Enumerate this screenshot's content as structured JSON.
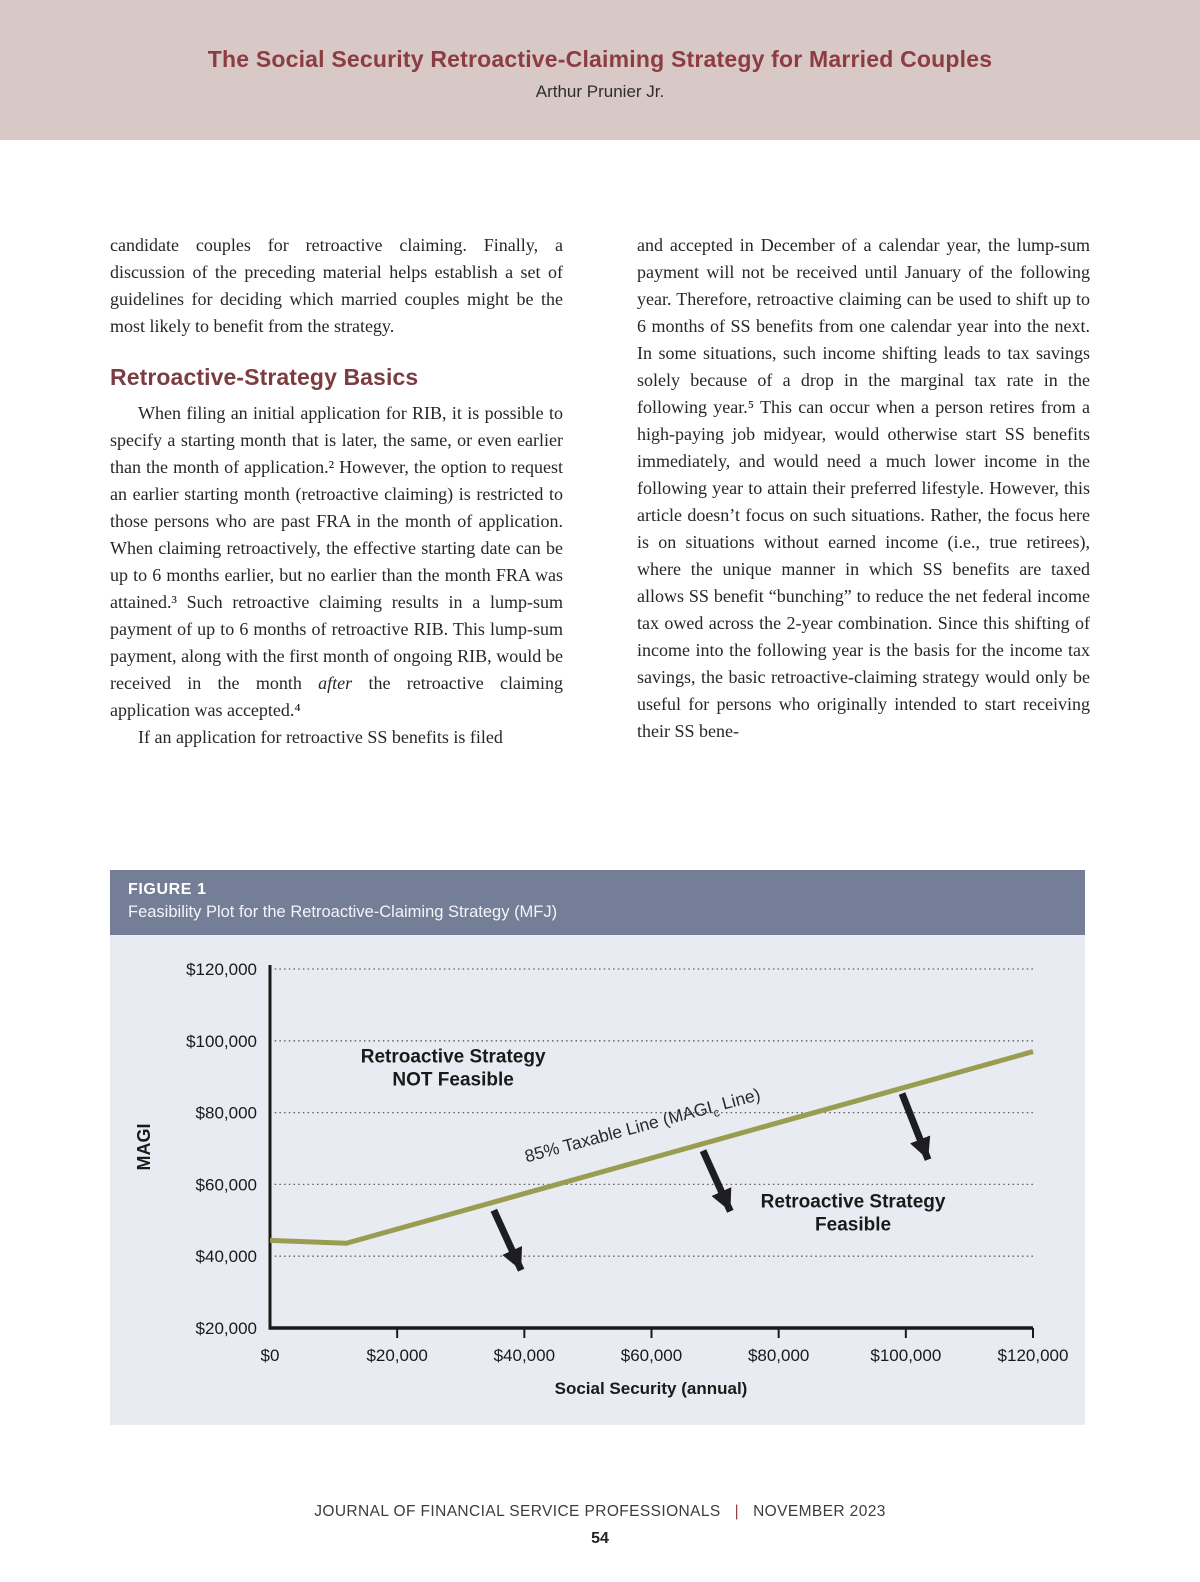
{
  "page": {
    "header": {
      "title": "The Social Security Retroactive-Claiming Strategy for Married Couples",
      "author": "Arthur Prunier Jr."
    },
    "article": {
      "left_column": {
        "para_intro": "candidate couples for retroactive claiming. Finally, a discussion of the preceding material helps establish a set of guidelines for deciding which married couples might be the most likely to benefit from the strategy.",
        "section_heading": "Retroactive-Strategy Basics",
        "para_basics_a": "When filing an initial application for RIB, it is possible to specify a starting month that is later, the same, or even earlier than the month of application.² However, the option to request an earlier starting month (retroactive claiming) is restricted to those persons who are past FRA in the month of application. When claiming retroactively, the effective starting date can be up to 6 months earlier, but no earlier than the month FRA was attained.³ Such retroactive claiming results in a lump-sum payment of up to 6 months of retroactive RIB. This lump-sum payment, along with the first month of ongoing RIB, would be received in the month ",
        "para_basics_italic": "after",
        "para_basics_b": " the retroactive claiming application was accepted.⁴",
        "para_last": "If an application for retroactive SS benefits is filed"
      },
      "right_column": {
        "para": "and accepted in December of a calendar year, the lump-sum payment will not be received until January of the following year. Therefore, retroactive claiming can be used to shift up to 6 months of SS benefits from one calendar year into the next. In some situations, such income shifting leads to tax savings solely because of a drop in the marginal tax rate in the following year.⁵ This can occur when a person retires from a high-paying job midyear, would otherwise start SS benefits immediately, and would need a much lower income in the following year to attain their preferred lifestyle. However, this article doesn’t focus on such situations. Rather, the focus here is on situations without earned income (i.e., true retirees), where the unique manner in which SS benefits are taxed allows SS benefit “bunching” to reduce the net federal income tax owed across the 2-year combination. Since this shifting of income into the following year is the basis for the income tax savings, the basic retroactive-claiming strategy would only be useful for persons who originally intended to start receiving their SS bene-"
      }
    },
    "figure": {
      "label": "FIGURE 1",
      "caption": "Feasibility Plot for the Retroactive-Claiming Strategy (MFJ)"
    },
    "footer": {
      "journal": "JOURNAL OF FINANCIAL SERVICE PROFESSIONALS",
      "separator": "|",
      "issue": "NOVEMBER 2023",
      "page_number": "54"
    }
  },
  "chart_data": {
    "type": "line",
    "title": "Feasibility Plot for the Retroactive-Claiming Strategy (MFJ)",
    "xlabel": "Social Security (annual)",
    "ylabel": "MAGI",
    "xlim": [
      0,
      120000
    ],
    "ylim": [
      20000,
      120000
    ],
    "x_ticks": [
      0,
      20000,
      40000,
      60000,
      80000,
      100000,
      120000
    ],
    "x_tick_labels": [
      "$0",
      "$20,000",
      "$40,000",
      "$60,000",
      "$80,000",
      "$100,000",
      "$120,000"
    ],
    "y_ticks": [
      20000,
      40000,
      60000,
      80000,
      100000,
      120000
    ],
    "y_tick_labels": [
      "$20,000",
      "$40,000",
      "$60,000",
      "$80,000",
      "$100,000",
      "$120,000"
    ],
    "grid": "horizontal-dotted",
    "legend": "none",
    "line_color": "#9a9c51",
    "arrow_color": "#1e1e22",
    "series": [
      {
        "name": "85% Taxable Line (MAGIc Line)",
        "points": [
          [
            0,
            44400
          ],
          [
            12000,
            43600
          ],
          [
            120000,
            97000
          ]
        ]
      }
    ],
    "line_label": {
      "pre": "85% Taxable Line (MAGI",
      "sub": "c",
      "post": " Line)"
    },
    "annotations": [
      {
        "lines": [
          "Retroactive Strategy",
          "NOT Feasible"
        ],
        "x": 28800,
        "y": 94000
      },
      {
        "lines": [
          "Retroactive Strategy",
          "Feasible"
        ],
        "x": 91700,
        "y": 53500
      }
    ],
    "arrows": [
      {
        "from": [
          35200,
          52800
        ],
        "to": [
          39500,
          36100
        ]
      },
      {
        "from": [
          68100,
          69400
        ],
        "to": [
          72400,
          52500
        ]
      },
      {
        "from": [
          99400,
          85300
        ],
        "to": [
          103500,
          66900
        ]
      }
    ]
  }
}
